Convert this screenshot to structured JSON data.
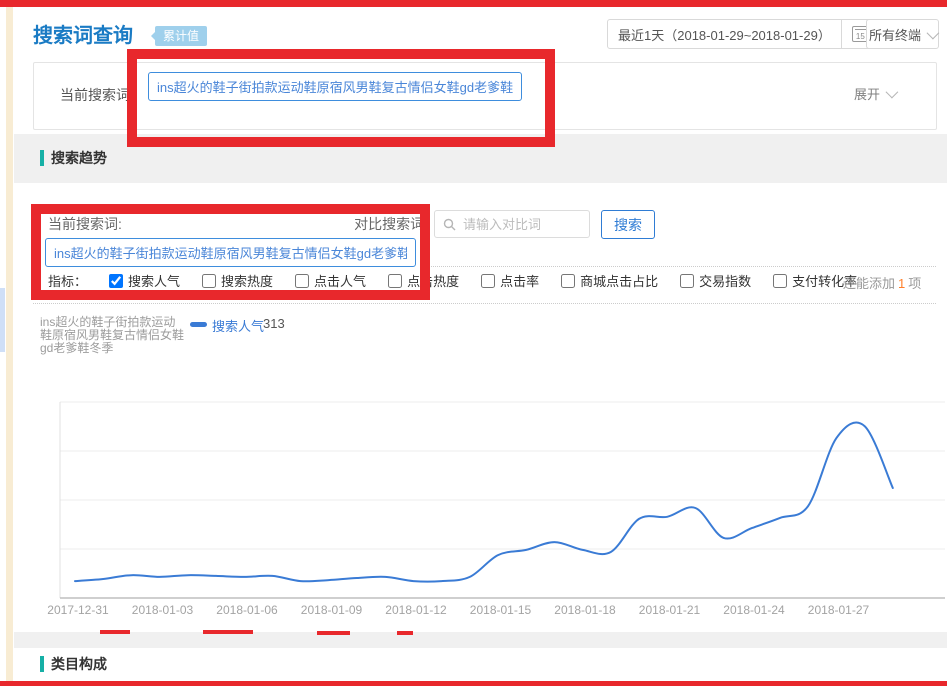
{
  "colors": {
    "titleBlue": "#1a7bc4",
    "badgeBlue": "#9fd0ec",
    "accentBlue": "#2f7cd4",
    "inputBlue": "#3e8ddd",
    "inputTextBlue": "#4a86d8",
    "teal": "#16b0a6",
    "lineBlue": "#3a7bd5",
    "annotationRed": "#e8282c",
    "orange": "#ff7f2a"
  },
  "header": {
    "title": "搜索词查询",
    "badge": "累计值",
    "date_range": "最近1天（2018-01-29~2018-01-29）",
    "date_icon_day": "15",
    "terminal": "所有终端"
  },
  "query_bar": {
    "label": "当前搜索词 :",
    "value": "ins超火的鞋子街拍款运动鞋原宿风男鞋复古情侣女鞋gd老爹鞋冬季",
    "expand": "展开"
  },
  "trend_section": {
    "title": "搜索趋势",
    "current_label": "当前搜索词:",
    "compare_label": "对比搜索词:",
    "current_value": "ins超火的鞋子街拍款运动鞋原宿风男鞋复古情侣女鞋gd老爹鞋冬季",
    "compare_placeholder": "请输入对比词",
    "search_button": "搜索",
    "metrics_label": "指标：",
    "metrics": [
      {
        "label": "搜索人气",
        "checked": true
      },
      {
        "label": "搜索热度",
        "checked": false
      },
      {
        "label": "点击人气",
        "checked": false
      },
      {
        "label": "点击热度",
        "checked": false
      },
      {
        "label": "点击率",
        "checked": false
      },
      {
        "label": "商城点击占比",
        "checked": false
      },
      {
        "label": "交易指数",
        "checked": false
      },
      {
        "label": "支付转化率",
        "checked": false
      }
    ],
    "add_more_prefix": "还能添加",
    "add_more_count": "1",
    "add_more_suffix": "项",
    "legend": {
      "term_lines": [
        "ins超火的鞋子街拍款运动",
        "鞋原宿风男鞋复古情侣女鞋",
        "gd老爹鞋冬季"
      ],
      "metric": "搜索人气",
      "value": "313"
    }
  },
  "category_section": {
    "title": "类目构成"
  },
  "chart_data": {
    "type": "line",
    "title": "搜索趋势",
    "series_name": "ins超火的鞋子街拍款运动鞋原宿风男鞋复古情侣女鞋gd老爹鞋冬季",
    "metric": "搜索人气",
    "latest_value": 313,
    "x": [
      "2017-12-31",
      "2018-01-01",
      "2018-01-02",
      "2018-01-03",
      "2018-01-04",
      "2018-01-05",
      "2018-01-06",
      "2018-01-07",
      "2018-01-08",
      "2018-01-09",
      "2018-01-10",
      "2018-01-11",
      "2018-01-12",
      "2018-01-13",
      "2018-01-14",
      "2018-01-15",
      "2018-01-16",
      "2018-01-17",
      "2018-01-18",
      "2018-01-19",
      "2018-01-20",
      "2018-01-21",
      "2018-01-22",
      "2018-01-23",
      "2018-01-24",
      "2018-01-25",
      "2018-01-26",
      "2018-01-27",
      "2018-01-28",
      "2018-01-29"
    ],
    "values": [
      48,
      54,
      65,
      60,
      65,
      63,
      60,
      63,
      48,
      51,
      57,
      60,
      48,
      48,
      60,
      122,
      137,
      159,
      137,
      131,
      225,
      231,
      256,
      171,
      199,
      228,
      262,
      455,
      489,
      313
    ],
    "tick_labels": [
      "2017-12-31",
      "2018-01-03",
      "2018-01-06",
      "2018-01-09",
      "2018-01-12",
      "2018-01-15",
      "2018-01-18",
      "2018-01-21",
      "2018-01-24",
      "2018-01-27"
    ],
    "ylim": [
      0,
      520
    ],
    "grid": true,
    "legend_position": "top-left",
    "line_color": "#3a7bd5"
  }
}
